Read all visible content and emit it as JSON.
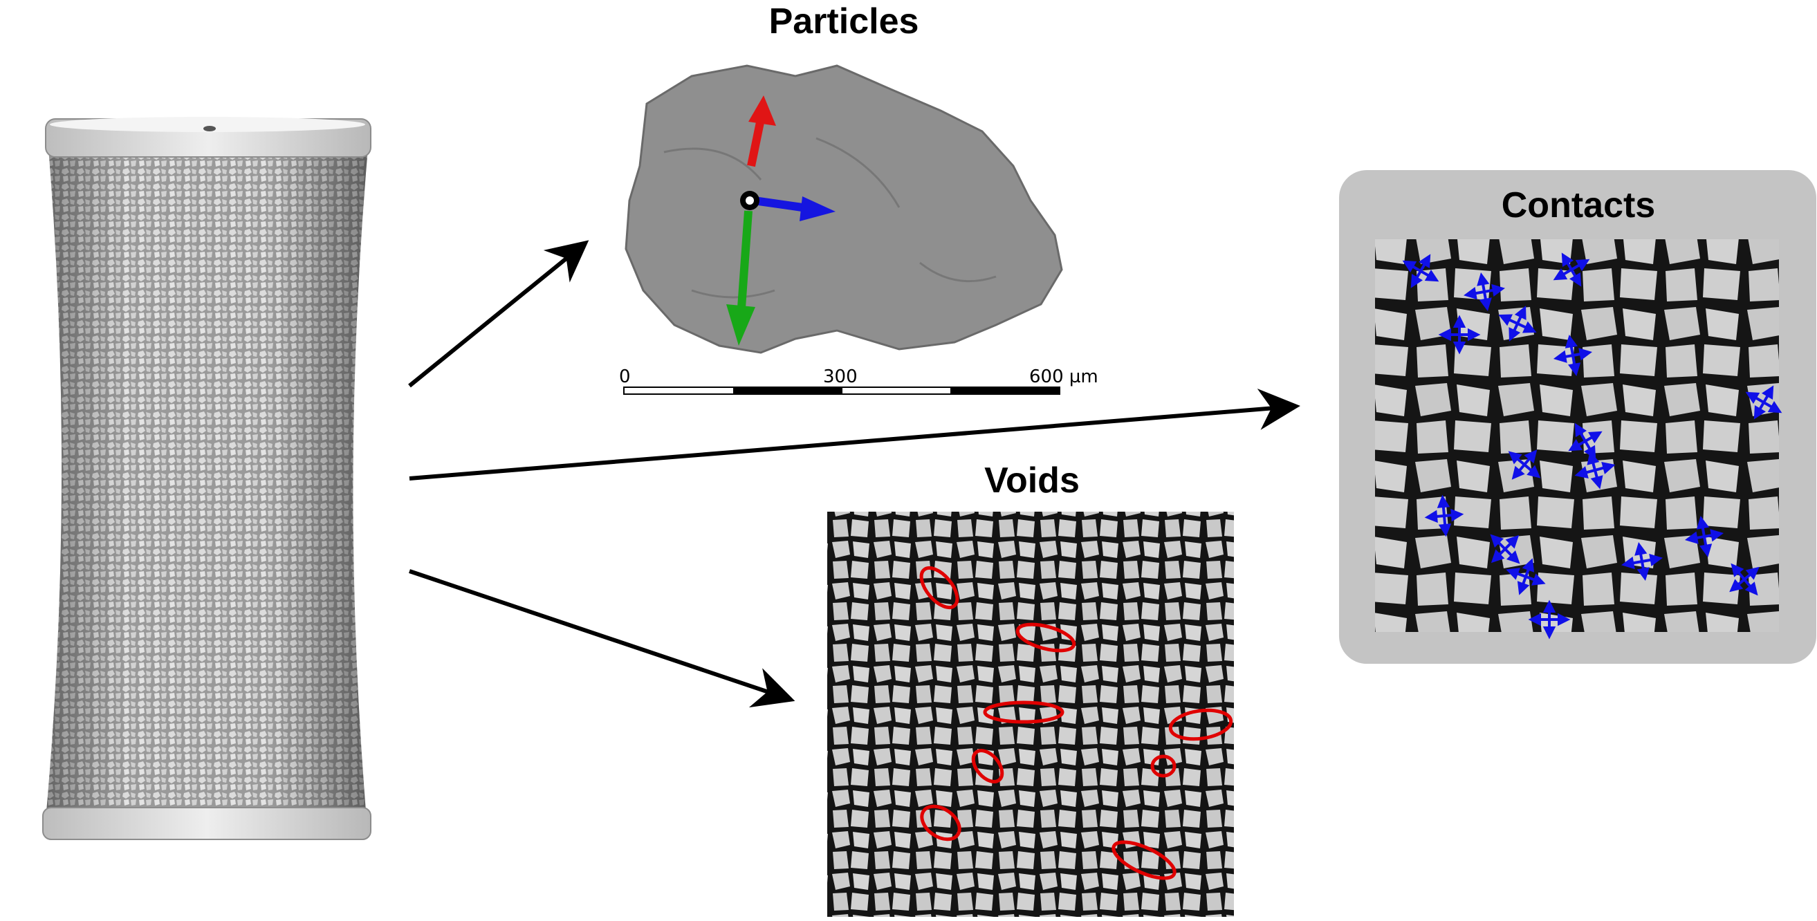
{
  "panels": {
    "particles": {
      "title": "Particles"
    },
    "voids": {
      "title": "Voids"
    },
    "contacts": {
      "title": "Contacts"
    }
  },
  "scale_bar": {
    "label_start": "0",
    "label_mid": "300",
    "label_end": "600 µm"
  },
  "colors": {
    "axis_x": "#1515e0",
    "axis_y": "#e01515",
    "axis_z": "#18a818",
    "void_outline": "#e00000",
    "contact_marker": "#1010e8",
    "contacts_frame": "#c4c4c4"
  }
}
